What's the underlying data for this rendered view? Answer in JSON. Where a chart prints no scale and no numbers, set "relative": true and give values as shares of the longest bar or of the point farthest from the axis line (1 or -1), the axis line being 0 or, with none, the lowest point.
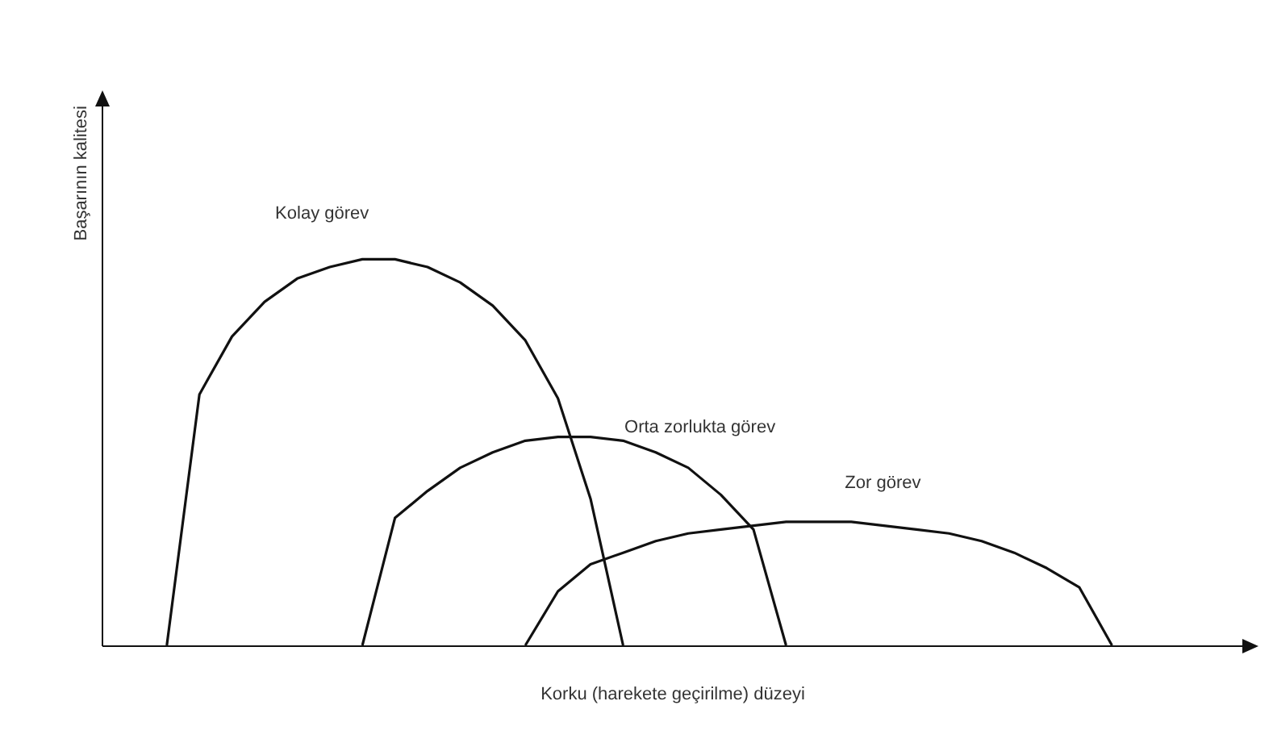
{
  "chart_data": {
    "type": "line",
    "relative": true,
    "ylabel": "Başarının kalitesi",
    "xlabel": "Korku (harekete geçirilme) düzeyi",
    "categories": [
      null,
      null,
      null,
      null,
      null,
      null,
      null,
      null,
      null,
      null,
      null,
      null,
      null,
      null,
      null,
      null,
      null,
      null,
      null,
      null,
      null,
      null,
      null,
      null,
      null,
      null,
      null,
      null,
      null,
      null,
      null,
      null,
      null,
      null,
      null,
      null
    ],
    "series": [
      {
        "name": "Kolay görev",
        "color": "#111111",
        "values": [
          null,
          null,
          0,
          0.65,
          0.8,
          0.89,
          0.95,
          0.98,
          1,
          1,
          0.98,
          0.94,
          0.88,
          0.79,
          0.64,
          0.38,
          0,
          null,
          null,
          null,
          null,
          null,
          null,
          null,
          null,
          null,
          null,
          null,
          null,
          null,
          null,
          null,
          null,
          null,
          null,
          null
        ]
      },
      {
        "name": "Orta zorlukta görev",
        "color": "#111111",
        "values": [
          null,
          null,
          null,
          null,
          null,
          null,
          null,
          null,
          0,
          0.33,
          0.4,
          0.46,
          0.5,
          0.53,
          0.54,
          0.54,
          0.53,
          0.5,
          0.46,
          0.39,
          0.3,
          0,
          null,
          null,
          null,
          null,
          null,
          null,
          null,
          null,
          null,
          null,
          null,
          null,
          null,
          null
        ]
      },
      {
        "name": "Zor görev",
        "color": "#111111",
        "values": [
          null,
          null,
          null,
          null,
          null,
          null,
          null,
          null,
          null,
          null,
          null,
          null,
          null,
          0,
          0.14,
          0.21,
          0.24,
          0.27,
          0.29,
          0.3,
          0.31,
          0.32,
          0.32,
          0.32,
          0.31,
          0.3,
          0.29,
          0.27,
          0.24,
          0.2,
          0.15,
          0,
          null,
          null,
          null,
          null
        ]
      }
    ]
  }
}
